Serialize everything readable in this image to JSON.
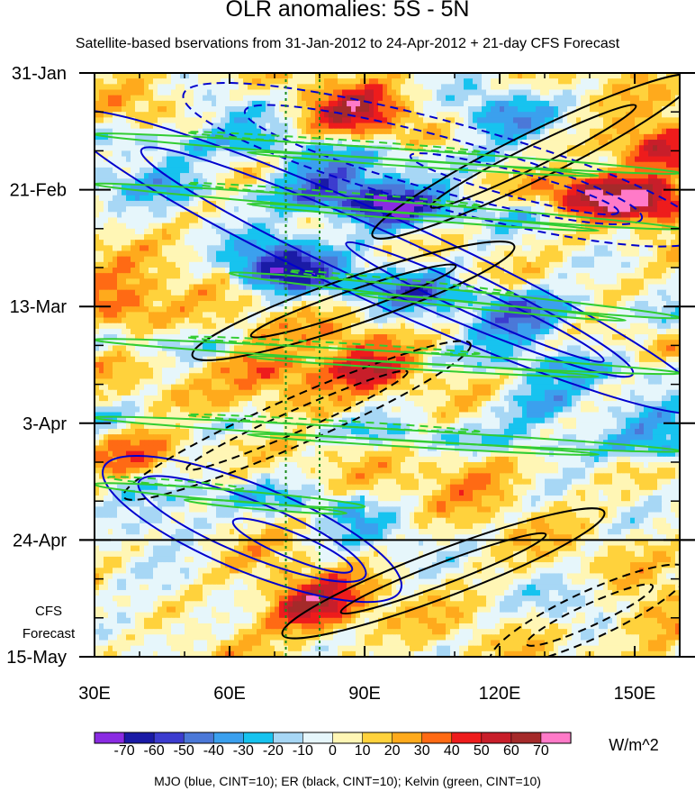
{
  "chart_data": {
    "type": "heatmap",
    "title": "OLR anomalies: 5S - 5N",
    "subtitle": "Satellite-based bservations from 31-Jan-2012 to 24-Apr-2012 + 21-day CFS Forecast",
    "x_axis": {
      "range": [
        30,
        160
      ],
      "ticks": [
        30,
        60,
        90,
        120,
        150
      ],
      "tick_labels": [
        "30E",
        "60E",
        "90E",
        "120E",
        "150E"
      ]
    },
    "y_axis": {
      "range_days": [
        0,
        105
      ],
      "ticks_days": [
        0,
        21,
        42,
        63,
        84,
        105
      ],
      "tick_labels": [
        "31-Jan",
        "21-Feb",
        "13-Mar",
        "3-Apr",
        "24-Apr",
        "15-May"
      ]
    },
    "reference_lines": {
      "observation_end_day": 84,
      "dotted_longitudes": [
        72.5,
        80
      ]
    },
    "forecast_label": [
      "CFS",
      "Forecast"
    ],
    "colorbar": {
      "unit": "W/m^2",
      "tick_labels": [
        "-70",
        "-60",
        "-50",
        "-40",
        "-30",
        "-20",
        "-10",
        "0",
        "10",
        "20",
        "30",
        "40",
        "50",
        "60",
        "70"
      ],
      "colors": [
        "#8a2be2",
        "#1a1aa6",
        "#3c3ccf",
        "#4b78d8",
        "#3ba0ee",
        "#17c3ef",
        "#a7d7f5",
        "#e6f6fb",
        "#fff6b5",
        "#ffd23c",
        "#ffaa1c",
        "#ff6a14",
        "#ee1c1c",
        "#c81e2a",
        "#a52a2a",
        "#ff7ac8"
      ]
    },
    "overlays": [
      {
        "name": "MJO",
        "color": "#0000cd",
        "cint": 10
      },
      {
        "name": "ER",
        "color": "#000000",
        "cint": 10
      },
      {
        "name": "Kelvin",
        "color": "#32cd32",
        "cint": 10
      }
    ],
    "footer": "MJO (blue, CINT=10); ER (black, CINT=10); Kelvin (green, CINT=10)",
    "anomaly_features": [
      {
        "lon": 42,
        "day": 5,
        "value": 25
      },
      {
        "lon": 60,
        "day": 6,
        "value": -20
      },
      {
        "lon": 88,
        "day": 7,
        "value": 45
      },
      {
        "lon": 120,
        "day": 8,
        "value": -40
      },
      {
        "lon": 155,
        "day": 14,
        "value": 55
      },
      {
        "lon": 45,
        "day": 16,
        "value": -30
      },
      {
        "lon": 80,
        "day": 20,
        "value": -45
      },
      {
        "lon": 95,
        "day": 24,
        "value": -60
      },
      {
        "lon": 140,
        "day": 22,
        "value": 50
      },
      {
        "lon": 155,
        "day": 24,
        "value": 45
      },
      {
        "lon": 72,
        "day": 34,
        "value": -65
      },
      {
        "lon": 100,
        "day": 38,
        "value": -35
      },
      {
        "lon": 125,
        "day": 44,
        "value": -45
      },
      {
        "lon": 35,
        "day": 42,
        "value": 40
      },
      {
        "lon": 65,
        "day": 51,
        "value": 30
      },
      {
        "lon": 90,
        "day": 52,
        "value": 50
      },
      {
        "lon": 75,
        "day": 56,
        "value": 25
      },
      {
        "lon": 130,
        "day": 60,
        "value": -40
      },
      {
        "lon": 155,
        "day": 65,
        "value": -35
      },
      {
        "lon": 40,
        "day": 68,
        "value": 35
      },
      {
        "lon": 115,
        "day": 72,
        "value": 20
      },
      {
        "lon": 45,
        "day": 80,
        "value": -30
      },
      {
        "lon": 92,
        "day": 82,
        "value": -20
      },
      {
        "lon": 78,
        "day": 96,
        "value": 55
      },
      {
        "lon": 140,
        "day": 96,
        "value": -25
      },
      {
        "lon": 150,
        "day": 98,
        "value": 30
      },
      {
        "lon": 38,
        "day": 100,
        "value": -20
      }
    ],
    "mjo_bands": [
      {
        "lon0": 30,
        "day0": 10,
        "lon1": 160,
        "day1": 58,
        "sign": -1
      },
      {
        "lon0": 55,
        "day0": 5,
        "lon1": 160,
        "day1": 28,
        "sign": 1
      },
      {
        "lon0": 35,
        "day0": 72,
        "lon1": 95,
        "day1": 92,
        "sign": -1
      }
    ],
    "er_bands": [
      {
        "lon0": 95,
        "day0": 28,
        "lon1": 160,
        "day1": 2,
        "sign": 1
      },
      {
        "lon0": 55,
        "day0": 50,
        "lon1": 120,
        "day1": 32,
        "sign": 1
      },
      {
        "lon0": 75,
        "day0": 100,
        "lon1": 140,
        "day1": 80,
        "sign": 1
      },
      {
        "lon0": 40,
        "day0": 75,
        "lon1": 110,
        "day1": 50,
        "sign": -1
      },
      {
        "lon0": 120,
        "day0": 105,
        "lon1": 160,
        "day1": 90,
        "sign": -1
      }
    ],
    "kelvin_bands": [
      {
        "lon0": 30,
        "day0": 11,
        "lon1": 160,
        "day1": 18
      },
      {
        "lon0": 30,
        "day0": 20,
        "lon1": 160,
        "day1": 28
      },
      {
        "lon0": 60,
        "day0": 36,
        "lon1": 160,
        "day1": 44
      },
      {
        "lon0": 30,
        "day0": 48,
        "lon1": 160,
        "day1": 54
      },
      {
        "lon0": 30,
        "day0": 62,
        "lon1": 160,
        "day1": 68
      },
      {
        "lon0": 30,
        "day0": 74,
        "lon1": 90,
        "day1": 78
      }
    ]
  }
}
